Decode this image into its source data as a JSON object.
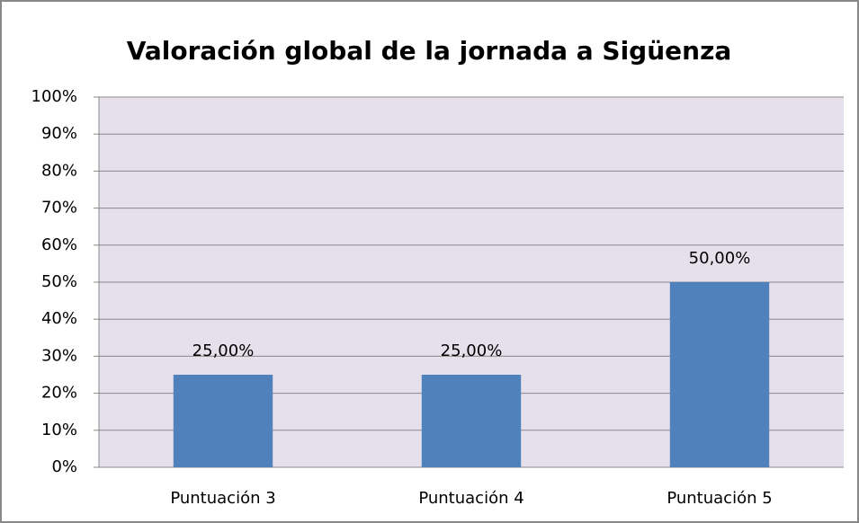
{
  "chart_data": {
    "type": "bar",
    "title": "Valoración global de la jornada a Sigüenza",
    "categories": [
      "Puntuación 3",
      "Puntuación 4",
      "Puntuación 5"
    ],
    "values": [
      25,
      25,
      50
    ],
    "value_labels": [
      "25,00%",
      "25,00%",
      "50,00%"
    ],
    "color": "#4f81bd",
    "ylim": [
      0,
      100
    ],
    "yticks": [
      {
        "value": 0,
        "label": "0%"
      },
      {
        "value": 10,
        "label": "10%"
      },
      {
        "value": 20,
        "label": "20%"
      },
      {
        "value": 30,
        "label": "30%"
      },
      {
        "value": 40,
        "label": "40%"
      },
      {
        "value": 50,
        "label": "50%"
      },
      {
        "value": 60,
        "label": "60%"
      },
      {
        "value": 70,
        "label": "70%"
      },
      {
        "value": 80,
        "label": "80%"
      },
      {
        "value": 90,
        "label": "90%"
      },
      {
        "value": 100,
        "label": "100%"
      }
    ],
    "grid": true
  }
}
